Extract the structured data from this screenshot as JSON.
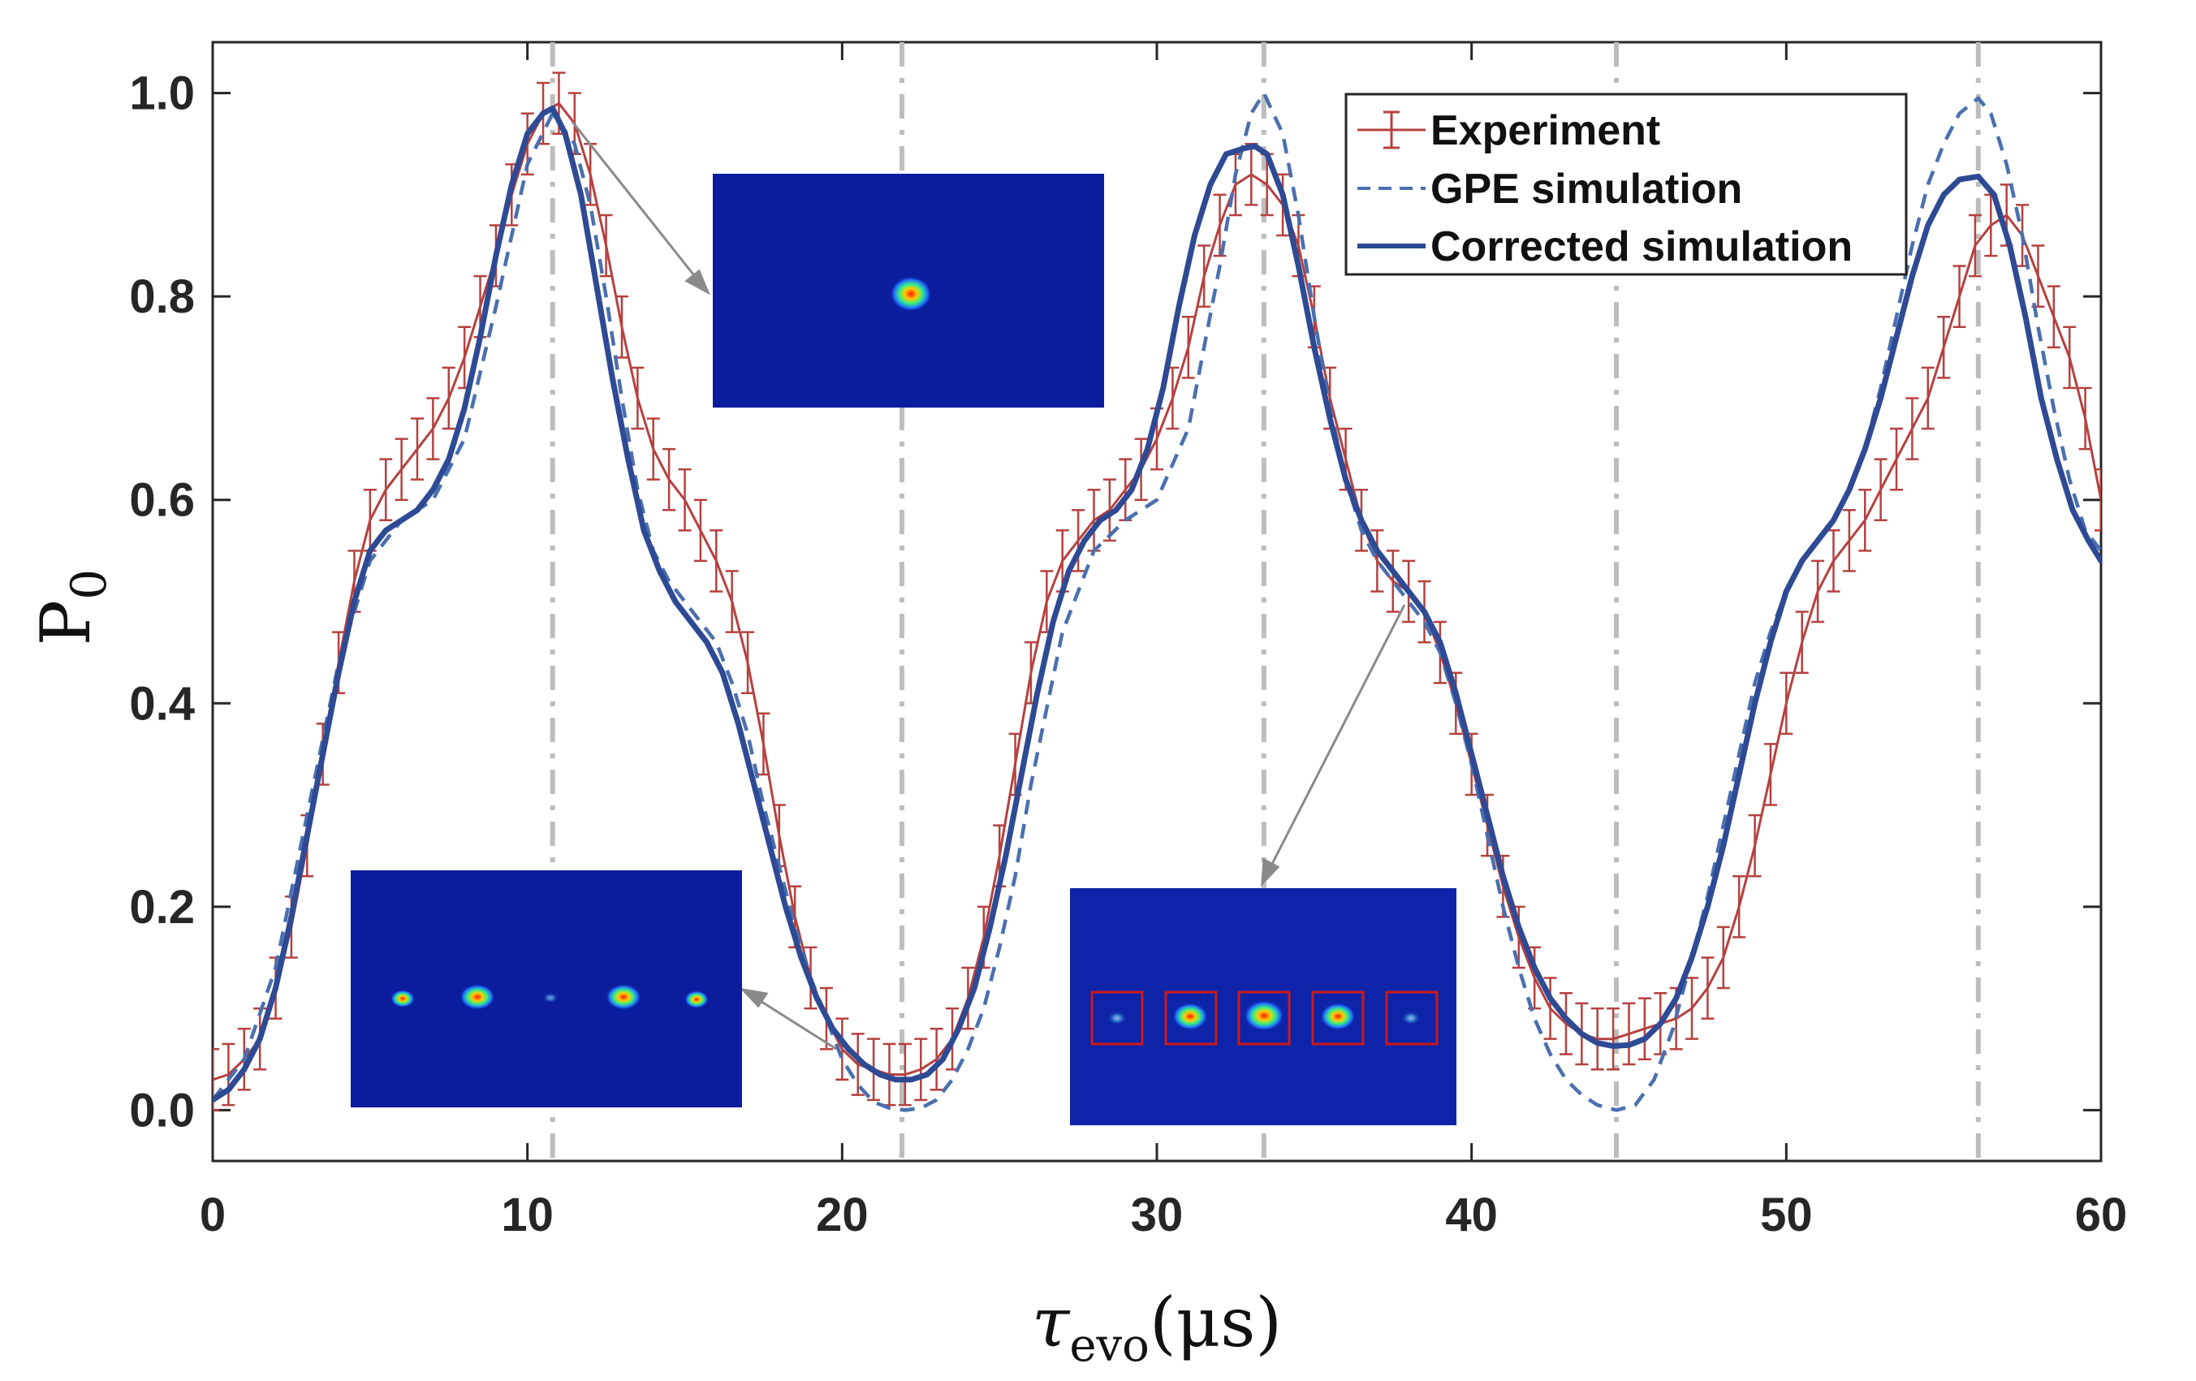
{
  "chart_data": {
    "type": "line",
    "title": "",
    "xlabel": {
      "main": "τ",
      "sub": "evo",
      "unit": "(μs)"
    },
    "ylabel": {
      "main": "P",
      "sub": "0"
    },
    "xlim": [
      0,
      60
    ],
    "ylim": [
      -0.05,
      1.05
    ],
    "xticks": [
      0,
      10,
      20,
      30,
      40,
      50,
      60
    ],
    "xtick_labels": [
      "0",
      "10",
      "20",
      "30",
      "40",
      "50",
      "60"
    ],
    "yticks": [
      0.0,
      0.2,
      0.4,
      0.6,
      0.8,
      1.0
    ],
    "ytick_labels": [
      "0.0",
      "0.2",
      "0.4",
      "0.6",
      "0.8",
      "1.0"
    ],
    "vertical_reference_lines_x": [
      10.8,
      21.9,
      33.4,
      44.6,
      56.1
    ],
    "legend": {
      "position": "top-right",
      "entries": [
        "Experiment",
        "GPE simulation",
        "Corrected simulation"
      ]
    },
    "colors": {
      "experiment": "#b5413f",
      "gpe": "#4a6fb0",
      "corrected": "#2e4a94",
      "refline": "#bdbdbd",
      "inset_bg": "#0b1d9c"
    },
    "series": [
      {
        "name": "Experiment",
        "style": "errorbar",
        "x": [
          0,
          0.5,
          1,
          1.5,
          2,
          2.5,
          3,
          3.5,
          4,
          4.5,
          5,
          5.5,
          6,
          6.5,
          7,
          7.5,
          8,
          8.5,
          9,
          9.5,
          10,
          10.5,
          11,
          11.5,
          12,
          12.5,
          13,
          13.5,
          14,
          14.5,
          15,
          15.5,
          16,
          16.5,
          17,
          17.5,
          18,
          18.5,
          19,
          19.5,
          20,
          20.5,
          21,
          21.5,
          22,
          22.5,
          23,
          23.5,
          24,
          24.5,
          25,
          25.5,
          26,
          26.5,
          27,
          27.5,
          28,
          28.5,
          29,
          29.5,
          30,
          30.5,
          31,
          31.5,
          32,
          32.5,
          33,
          33.5,
          34,
          34.5,
          35,
          35.5,
          36,
          36.5,
          37,
          37.5,
          38,
          38.5,
          39,
          39.5,
          40,
          40.5,
          41,
          41.5,
          42,
          42.5,
          43,
          43.5,
          44,
          44.5,
          45,
          45.5,
          46,
          46.5,
          47,
          47.5,
          48,
          48.5,
          49,
          49.5,
          50,
          50.5,
          51,
          51.5,
          52,
          52.5,
          53,
          53.5,
          54,
          54.5,
          55,
          55.5,
          56,
          56.5,
          57,
          57.5,
          58,
          58.5,
          59,
          59.5,
          60
        ],
        "y": [
          0.03,
          0.035,
          0.05,
          0.07,
          0.12,
          0.18,
          0.26,
          0.35,
          0.44,
          0.52,
          0.58,
          0.61,
          0.63,
          0.65,
          0.67,
          0.7,
          0.74,
          0.79,
          0.84,
          0.9,
          0.95,
          0.98,
          0.99,
          0.97,
          0.92,
          0.85,
          0.77,
          0.7,
          0.65,
          0.62,
          0.6,
          0.57,
          0.54,
          0.5,
          0.44,
          0.36,
          0.27,
          0.19,
          0.13,
          0.09,
          0.06,
          0.045,
          0.04,
          0.035,
          0.035,
          0.04,
          0.05,
          0.07,
          0.11,
          0.17,
          0.25,
          0.34,
          0.43,
          0.5,
          0.54,
          0.56,
          0.58,
          0.59,
          0.61,
          0.63,
          0.66,
          0.7,
          0.75,
          0.82,
          0.87,
          0.91,
          0.92,
          0.91,
          0.89,
          0.85,
          0.78,
          0.7,
          0.64,
          0.58,
          0.54,
          0.52,
          0.51,
          0.49,
          0.45,
          0.4,
          0.34,
          0.28,
          0.22,
          0.17,
          0.13,
          0.1,
          0.085,
          0.075,
          0.07,
          0.07,
          0.075,
          0.08,
          0.085,
          0.09,
          0.1,
          0.12,
          0.15,
          0.2,
          0.26,
          0.33,
          0.4,
          0.46,
          0.51,
          0.54,
          0.56,
          0.58,
          0.61,
          0.64,
          0.67,
          0.7,
          0.75,
          0.8,
          0.85,
          0.87,
          0.88,
          0.86,
          0.82,
          0.78,
          0.74,
          0.68,
          0.6
        ],
        "error": 0.03
      },
      {
        "name": "GPE simulation",
        "style": "dashed",
        "x": [
          0,
          1,
          2,
          3,
          4,
          5,
          6,
          7,
          8,
          9,
          10,
          10.8,
          11.5,
          12,
          12.5,
          13,
          13.5,
          14,
          14.5,
          15,
          15.5,
          16,
          16.5,
          17,
          17.5,
          18,
          18.5,
          19,
          19.5,
          20,
          20.5,
          21,
          21.5,
          22,
          22.5,
          23,
          23.5,
          24,
          24.5,
          25,
          25.5,
          26,
          27,
          28,
          29,
          30,
          31,
          32,
          32.5,
          33,
          33.4,
          34,
          34.5,
          35,
          35.5,
          36,
          36.5,
          37,
          37.5,
          38,
          38.5,
          39,
          39.5,
          40,
          40.5,
          41,
          41.5,
          42,
          42.5,
          43,
          43.5,
          44,
          44.6,
          45.2,
          45.8,
          46.4,
          47,
          47.5,
          48,
          48.5,
          49,
          49.5,
          50,
          50.5,
          51,
          51.5,
          52,
          52.5,
          53,
          53.5,
          54,
          54.5,
          55,
          55.5,
          56.1,
          56.5,
          57,
          57.5,
          58,
          58.5,
          59,
          59.5,
          60
        ],
        "y": [
          0.01,
          0.05,
          0.14,
          0.29,
          0.44,
          0.54,
          0.58,
          0.6,
          0.66,
          0.79,
          0.93,
          0.98,
          0.95,
          0.89,
          0.8,
          0.7,
          0.61,
          0.55,
          0.52,
          0.5,
          0.48,
          0.46,
          0.42,
          0.37,
          0.3,
          0.24,
          0.18,
          0.13,
          0.09,
          0.05,
          0.025,
          0.008,
          0.002,
          0.0,
          0.002,
          0.01,
          0.03,
          0.06,
          0.1,
          0.16,
          0.23,
          0.32,
          0.47,
          0.55,
          0.58,
          0.6,
          0.67,
          0.83,
          0.92,
          0.98,
          1.0,
          0.96,
          0.88,
          0.78,
          0.69,
          0.62,
          0.57,
          0.54,
          0.52,
          0.5,
          0.48,
          0.45,
          0.4,
          0.34,
          0.27,
          0.2,
          0.14,
          0.09,
          0.055,
          0.03,
          0.015,
          0.005,
          0.0,
          0.005,
          0.03,
          0.08,
          0.15,
          0.21,
          0.28,
          0.35,
          0.42,
          0.47,
          0.51,
          0.54,
          0.56,
          0.58,
          0.61,
          0.65,
          0.71,
          0.78,
          0.85,
          0.91,
          0.95,
          0.98,
          0.995,
          0.98,
          0.93,
          0.86,
          0.77,
          0.69,
          0.62,
          0.57,
          0.55
        ]
      },
      {
        "name": "Corrected simulation",
        "style": "solid",
        "x": [
          0,
          0.5,
          1,
          1.5,
          2,
          2.5,
          3,
          3.5,
          4,
          4.5,
          5,
          5.5,
          6,
          6.5,
          7,
          7.5,
          8,
          8.5,
          9,
          9.5,
          10,
          10.5,
          10.8,
          11.2,
          11.7,
          12.2,
          12.7,
          13.2,
          13.7,
          14.2,
          14.7,
          15.2,
          15.7,
          16.2,
          16.7,
          17.2,
          17.7,
          18.2,
          18.7,
          19.2,
          19.7,
          20.2,
          20.7,
          21.2,
          21.7,
          22.2,
          22.7,
          23.2,
          23.7,
          24.2,
          24.7,
          25.2,
          25.7,
          26.2,
          26.7,
          27.2,
          27.7,
          28.2,
          28.7,
          29.2,
          29.7,
          30.2,
          30.7,
          31.2,
          31.7,
          32.2,
          32.7,
          33.1,
          33.5,
          34,
          34.5,
          35,
          35.5,
          36,
          36.5,
          37,
          37.5,
          38,
          38.5,
          39,
          39.5,
          40,
          40.5,
          41,
          41.5,
          42,
          42.5,
          43,
          43.5,
          44,
          44.5,
          45,
          45.5,
          46,
          46.5,
          47,
          47.5,
          48,
          48.5,
          49,
          49.5,
          50,
          50.5,
          51,
          51.5,
          52,
          52.5,
          53,
          53.5,
          54,
          54.5,
          55,
          55.5,
          56.1,
          56.6,
          57.1,
          57.6,
          58.1,
          58.6,
          59.1,
          59.6,
          60
        ],
        "y": [
          0.01,
          0.02,
          0.04,
          0.07,
          0.12,
          0.19,
          0.27,
          0.35,
          0.43,
          0.5,
          0.55,
          0.57,
          0.58,
          0.59,
          0.61,
          0.64,
          0.69,
          0.76,
          0.84,
          0.91,
          0.96,
          0.98,
          0.985,
          0.96,
          0.9,
          0.81,
          0.72,
          0.64,
          0.57,
          0.53,
          0.5,
          0.48,
          0.46,
          0.43,
          0.38,
          0.32,
          0.26,
          0.2,
          0.15,
          0.11,
          0.08,
          0.06,
          0.045,
          0.035,
          0.03,
          0.03,
          0.035,
          0.05,
          0.08,
          0.12,
          0.18,
          0.25,
          0.33,
          0.41,
          0.48,
          0.53,
          0.56,
          0.58,
          0.59,
          0.61,
          0.65,
          0.71,
          0.79,
          0.86,
          0.91,
          0.94,
          0.945,
          0.948,
          0.94,
          0.9,
          0.83,
          0.75,
          0.68,
          0.62,
          0.58,
          0.55,
          0.53,
          0.51,
          0.49,
          0.46,
          0.41,
          0.35,
          0.29,
          0.23,
          0.18,
          0.14,
          0.11,
          0.09,
          0.075,
          0.066,
          0.063,
          0.064,
          0.07,
          0.085,
          0.11,
          0.15,
          0.2,
          0.26,
          0.33,
          0.4,
          0.46,
          0.51,
          0.54,
          0.56,
          0.58,
          0.61,
          0.65,
          0.7,
          0.76,
          0.82,
          0.87,
          0.9,
          0.915,
          0.918,
          0.9,
          0.85,
          0.78,
          0.7,
          0.64,
          0.59,
          0.56,
          0.54
        ]
      }
    ]
  },
  "legend_labels": {
    "experiment": "Experiment",
    "gpe": "GPE simulation",
    "corrected": "Corrected simulation"
  }
}
